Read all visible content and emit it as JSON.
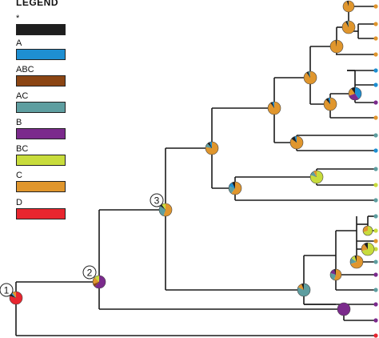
{
  "legend": {
    "title": "LEGEND",
    "items": [
      {
        "label": "*",
        "color": "#1e1e1e"
      },
      {
        "label": "A",
        "color": "#1e8fd2"
      },
      {
        "label": "ABC",
        "color": "#8b4513"
      },
      {
        "label": "AC",
        "color": "#5e9ea0"
      },
      {
        "label": "B",
        "color": "#7b2a8c"
      },
      {
        "label": "BC",
        "color": "#c8dc3c"
      },
      {
        "label": "C",
        "color": "#e0962d"
      },
      {
        "label": "D",
        "color": "#e8262f"
      }
    ]
  },
  "node_labels": [
    "1",
    "2",
    "3"
  ],
  "tree": {
    "branch_color": "#1a1a1a",
    "root_state": "D",
    "tips_count": 26
  }
}
